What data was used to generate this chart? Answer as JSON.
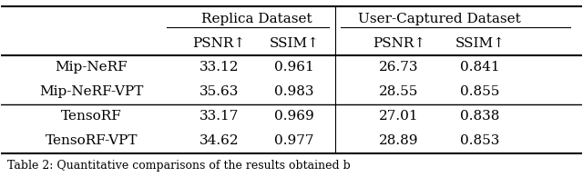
{
  "col_headers_row1_replica": "Replica Dataset",
  "col_headers_row1_user": "User-Captured Dataset",
  "col_headers_row2": [
    "PSNR↑",
    "SSIM↑",
    "PSNR↑",
    "SSIM↑"
  ],
  "rows": [
    [
      "Mip-NeRF",
      "33.12",
      "0.961",
      "26.73",
      "0.841"
    ],
    [
      "Mip-NeRF-VPT",
      "35.63",
      "0.983",
      "28.55",
      "0.855"
    ],
    [
      "TensoRF",
      "33.17",
      "0.969",
      "27.01",
      "0.838"
    ],
    [
      "TensoRF-VPT",
      "34.62",
      "0.977",
      "28.89",
      "0.853"
    ]
  ],
  "background_color": "#ffffff",
  "font_size": 11,
  "header_font_size": 11,
  "caption": "Table 2: Quantitative comparisons of the results obtained b"
}
